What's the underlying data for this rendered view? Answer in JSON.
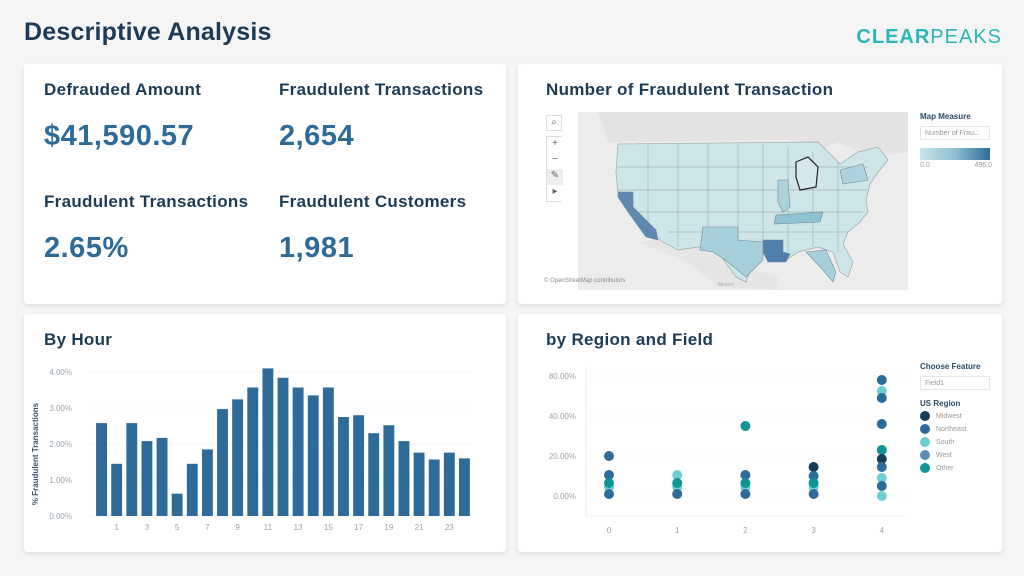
{
  "header": {
    "title": "Descriptive Analysis",
    "brand_bold": "CLEAR",
    "brand_regular": "PEAKS",
    "brand_color": "#2ab7b5"
  },
  "kpis": [
    {
      "label": "Defrauded Amount",
      "value": "$41,590.57"
    },
    {
      "label": "Fraudulent Transactions",
      "value": "2,654"
    },
    {
      "label": "Fraudulent Transactions",
      "value": "2.65%"
    },
    {
      "label": "Fraudulent Customers",
      "value": "1,981"
    }
  ],
  "map": {
    "title": "Number of Fraudulent Transaction",
    "legend_title": "Map Measure",
    "measure_select": "Number of Frau...",
    "scale_min": "0.0",
    "scale_max": "496.0",
    "controls": {
      "search": "search-icon",
      "zoom_in": "+",
      "zoom_out": "−",
      "pin": "pin-icon",
      "expand": "▸"
    },
    "attribution": "© OpenStreetMap contributors",
    "country_label": "Mexico",
    "highlighted_states": {
      "California": 0.75,
      "Louisiana": 0.8,
      "Tennessee": 0.45,
      "Texas": 0.35,
      "Florida": 0.35,
      "Illinois": 0.3,
      "New York": 0.3
    }
  },
  "hour_chart": {
    "title": "By Hour",
    "chart_data": {
      "type": "bar",
      "title": "By Hour",
      "xlabel": "",
      "ylabel": "% Fraudulent Transactions",
      "categories": [
        0,
        1,
        2,
        3,
        4,
        5,
        6,
        7,
        8,
        9,
        10,
        11,
        12,
        13,
        14,
        15,
        16,
        17,
        18,
        19,
        20,
        21,
        22,
        23,
        24
      ],
      "values": [
        2.58,
        1.45,
        2.58,
        2.08,
        2.17,
        0.62,
        1.45,
        1.85,
        2.97,
        3.24,
        3.57,
        4.1,
        3.84,
        3.57,
        3.35,
        3.57,
        2.75,
        2.8,
        2.3,
        2.52,
        2.08,
        1.76,
        1.57,
        1.76,
        1.6
      ],
      "x_tick_labels": [
        "1",
        "3",
        "5",
        "7",
        "9",
        "11",
        "13",
        "15",
        "17",
        "19",
        "21",
        "23"
      ],
      "y_tick_labels": [
        "0.00%",
        "1.00%",
        "2.00%",
        "3.00%",
        "4.00%"
      ],
      "ylim": [
        0,
        4.3
      ],
      "grid": true,
      "color": "#2f6b99"
    }
  },
  "region_chart": {
    "title": "by Region and Field",
    "feature_label": "Choose Feature",
    "feature_value": "Field1",
    "legend_title": "US Region",
    "regions": [
      {
        "name": "Midwest",
        "color": "#163d5c"
      },
      {
        "name": "Northeast",
        "color": "#2f6b99"
      },
      {
        "name": "South",
        "color": "#6dcfcf"
      },
      {
        "name": "West",
        "color": "#5a8fb8"
      },
      {
        "name": "Other",
        "color": "#0e9595"
      }
    ],
    "chart_data": {
      "type": "scatter",
      "title": "by Region and Field",
      "xlabel": "",
      "ylabel": "",
      "x_ticks": [
        "0",
        "1",
        "2",
        "3",
        "4"
      ],
      "y_ticks": [
        {
          "v": 0,
          "label": "0.00%"
        },
        {
          "v": 20,
          "label": "20.00%"
        },
        {
          "v": 40,
          "label": "40.00%"
        },
        {
          "v": 80,
          "label": "80.00%"
        }
      ],
      "grid": true,
      "legend": "right",
      "points": [
        {
          "x": 0,
          "y": 20,
          "region": "Northeast"
        },
        {
          "x": 0,
          "y": 10.5,
          "region": "Northeast"
        },
        {
          "x": 0,
          "y": 4.5,
          "region": "South"
        },
        {
          "x": 0,
          "y": 6.5,
          "region": "Other"
        },
        {
          "x": 0,
          "y": 1,
          "region": "Northeast"
        },
        {
          "x": 1,
          "y": 10.5,
          "region": "South"
        },
        {
          "x": 1,
          "y": 4.5,
          "region": "South"
        },
        {
          "x": 1,
          "y": 6.5,
          "region": "Other"
        },
        {
          "x": 1,
          "y": 1,
          "region": "Northeast"
        },
        {
          "x": 2,
          "y": 35,
          "region": "Other"
        },
        {
          "x": 2,
          "y": 10.5,
          "region": "Northeast"
        },
        {
          "x": 2,
          "y": 4.5,
          "region": "South"
        },
        {
          "x": 2,
          "y": 6.5,
          "region": "Other"
        },
        {
          "x": 2,
          "y": 1,
          "region": "Northeast"
        },
        {
          "x": 3,
          "y": 14.5,
          "region": "Midwest"
        },
        {
          "x": 3,
          "y": 10,
          "region": "Northeast"
        },
        {
          "x": 3,
          "y": 4.5,
          "region": "South"
        },
        {
          "x": 3,
          "y": 6.5,
          "region": "Other"
        },
        {
          "x": 3,
          "y": 1,
          "region": "Northeast"
        },
        {
          "x": 4,
          "y": 76,
          "region": "Northeast"
        },
        {
          "x": 4,
          "y": 65,
          "region": "South"
        },
        {
          "x": 4,
          "y": 58,
          "region": "Northeast"
        },
        {
          "x": 4,
          "y": 36,
          "region": "Northeast"
        },
        {
          "x": 4,
          "y": 23,
          "region": "Other"
        },
        {
          "x": 4,
          "y": 18.5,
          "region": "Midwest"
        },
        {
          "x": 4,
          "y": 14.5,
          "region": "Northeast"
        },
        {
          "x": 4,
          "y": 9,
          "region": "South"
        },
        {
          "x": 4,
          "y": 5,
          "region": "Northeast"
        },
        {
          "x": 4,
          "y": 0,
          "region": "South"
        }
      ]
    }
  }
}
